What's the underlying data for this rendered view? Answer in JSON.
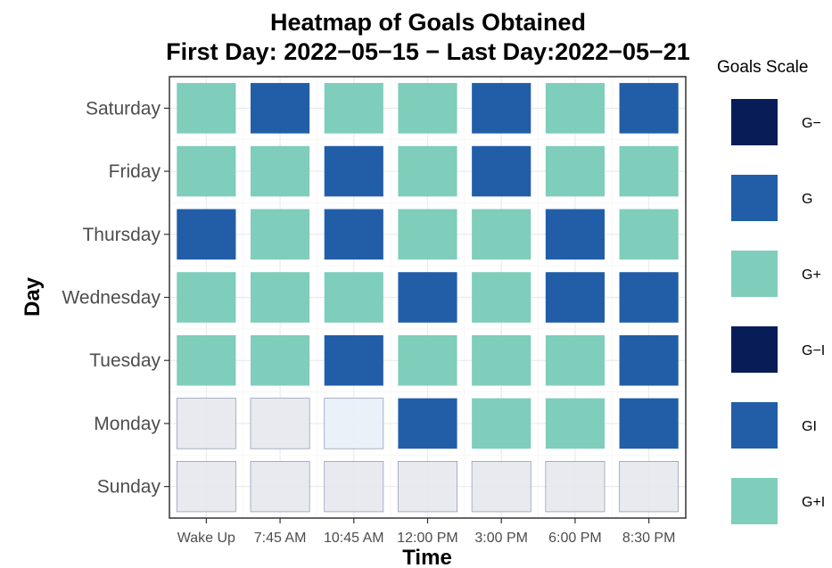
{
  "chart_data": {
    "type": "heatmap",
    "title_line1": "Heatmap of Goals Obtained",
    "title_line2": "First Day: 2022−05−15 − Last Day:2022−05−21",
    "xlabel": "Time",
    "ylabel": "Day",
    "x_categories": [
      "Wake Up",
      "7:45 AM",
      "10:45 AM",
      "12:00 PM",
      "3:00 PM",
      "6:00 PM",
      "8:30 PM"
    ],
    "y_categories": [
      "Saturday",
      "Friday",
      "Thursday",
      "Wednesday",
      "Tuesday",
      "Monday",
      "Sunday"
    ],
    "grid": true,
    "legend": {
      "title": "Goals Scale",
      "position": "right",
      "entries": [
        {
          "label": "G−",
          "color": "#081d58"
        },
        {
          "label": "G",
          "color": "#225ea8"
        },
        {
          "label": "G+",
          "color": "#7fcdbb"
        },
        {
          "label": "G−I",
          "color": "#081d58"
        },
        {
          "label": "GI",
          "color": "#225ea8"
        },
        {
          "label": "G+I",
          "color": "#7fcdbb"
        }
      ]
    },
    "missing_color": "#e5e8ee",
    "missing_color_light": "#e7eff8",
    "cells": [
      [
        "G+",
        "G",
        "G+",
        "G+",
        "G",
        "G+",
        "G"
      ],
      [
        "G+",
        "G+",
        "G",
        "G+",
        "G",
        "G+",
        "G+"
      ],
      [
        "G",
        "G+",
        "G",
        "G+",
        "G+",
        "G",
        "G+"
      ],
      [
        "G+",
        "G+",
        "G+",
        "G",
        "G+",
        "G",
        "G"
      ],
      [
        "G+",
        "G+",
        "G",
        "G+",
        "G+",
        "G+",
        "G"
      ],
      [
        null,
        null,
        null,
        "G",
        "G+",
        "G+",
        "G"
      ],
      [
        null,
        null,
        null,
        null,
        null,
        null,
        null
      ]
    ]
  }
}
